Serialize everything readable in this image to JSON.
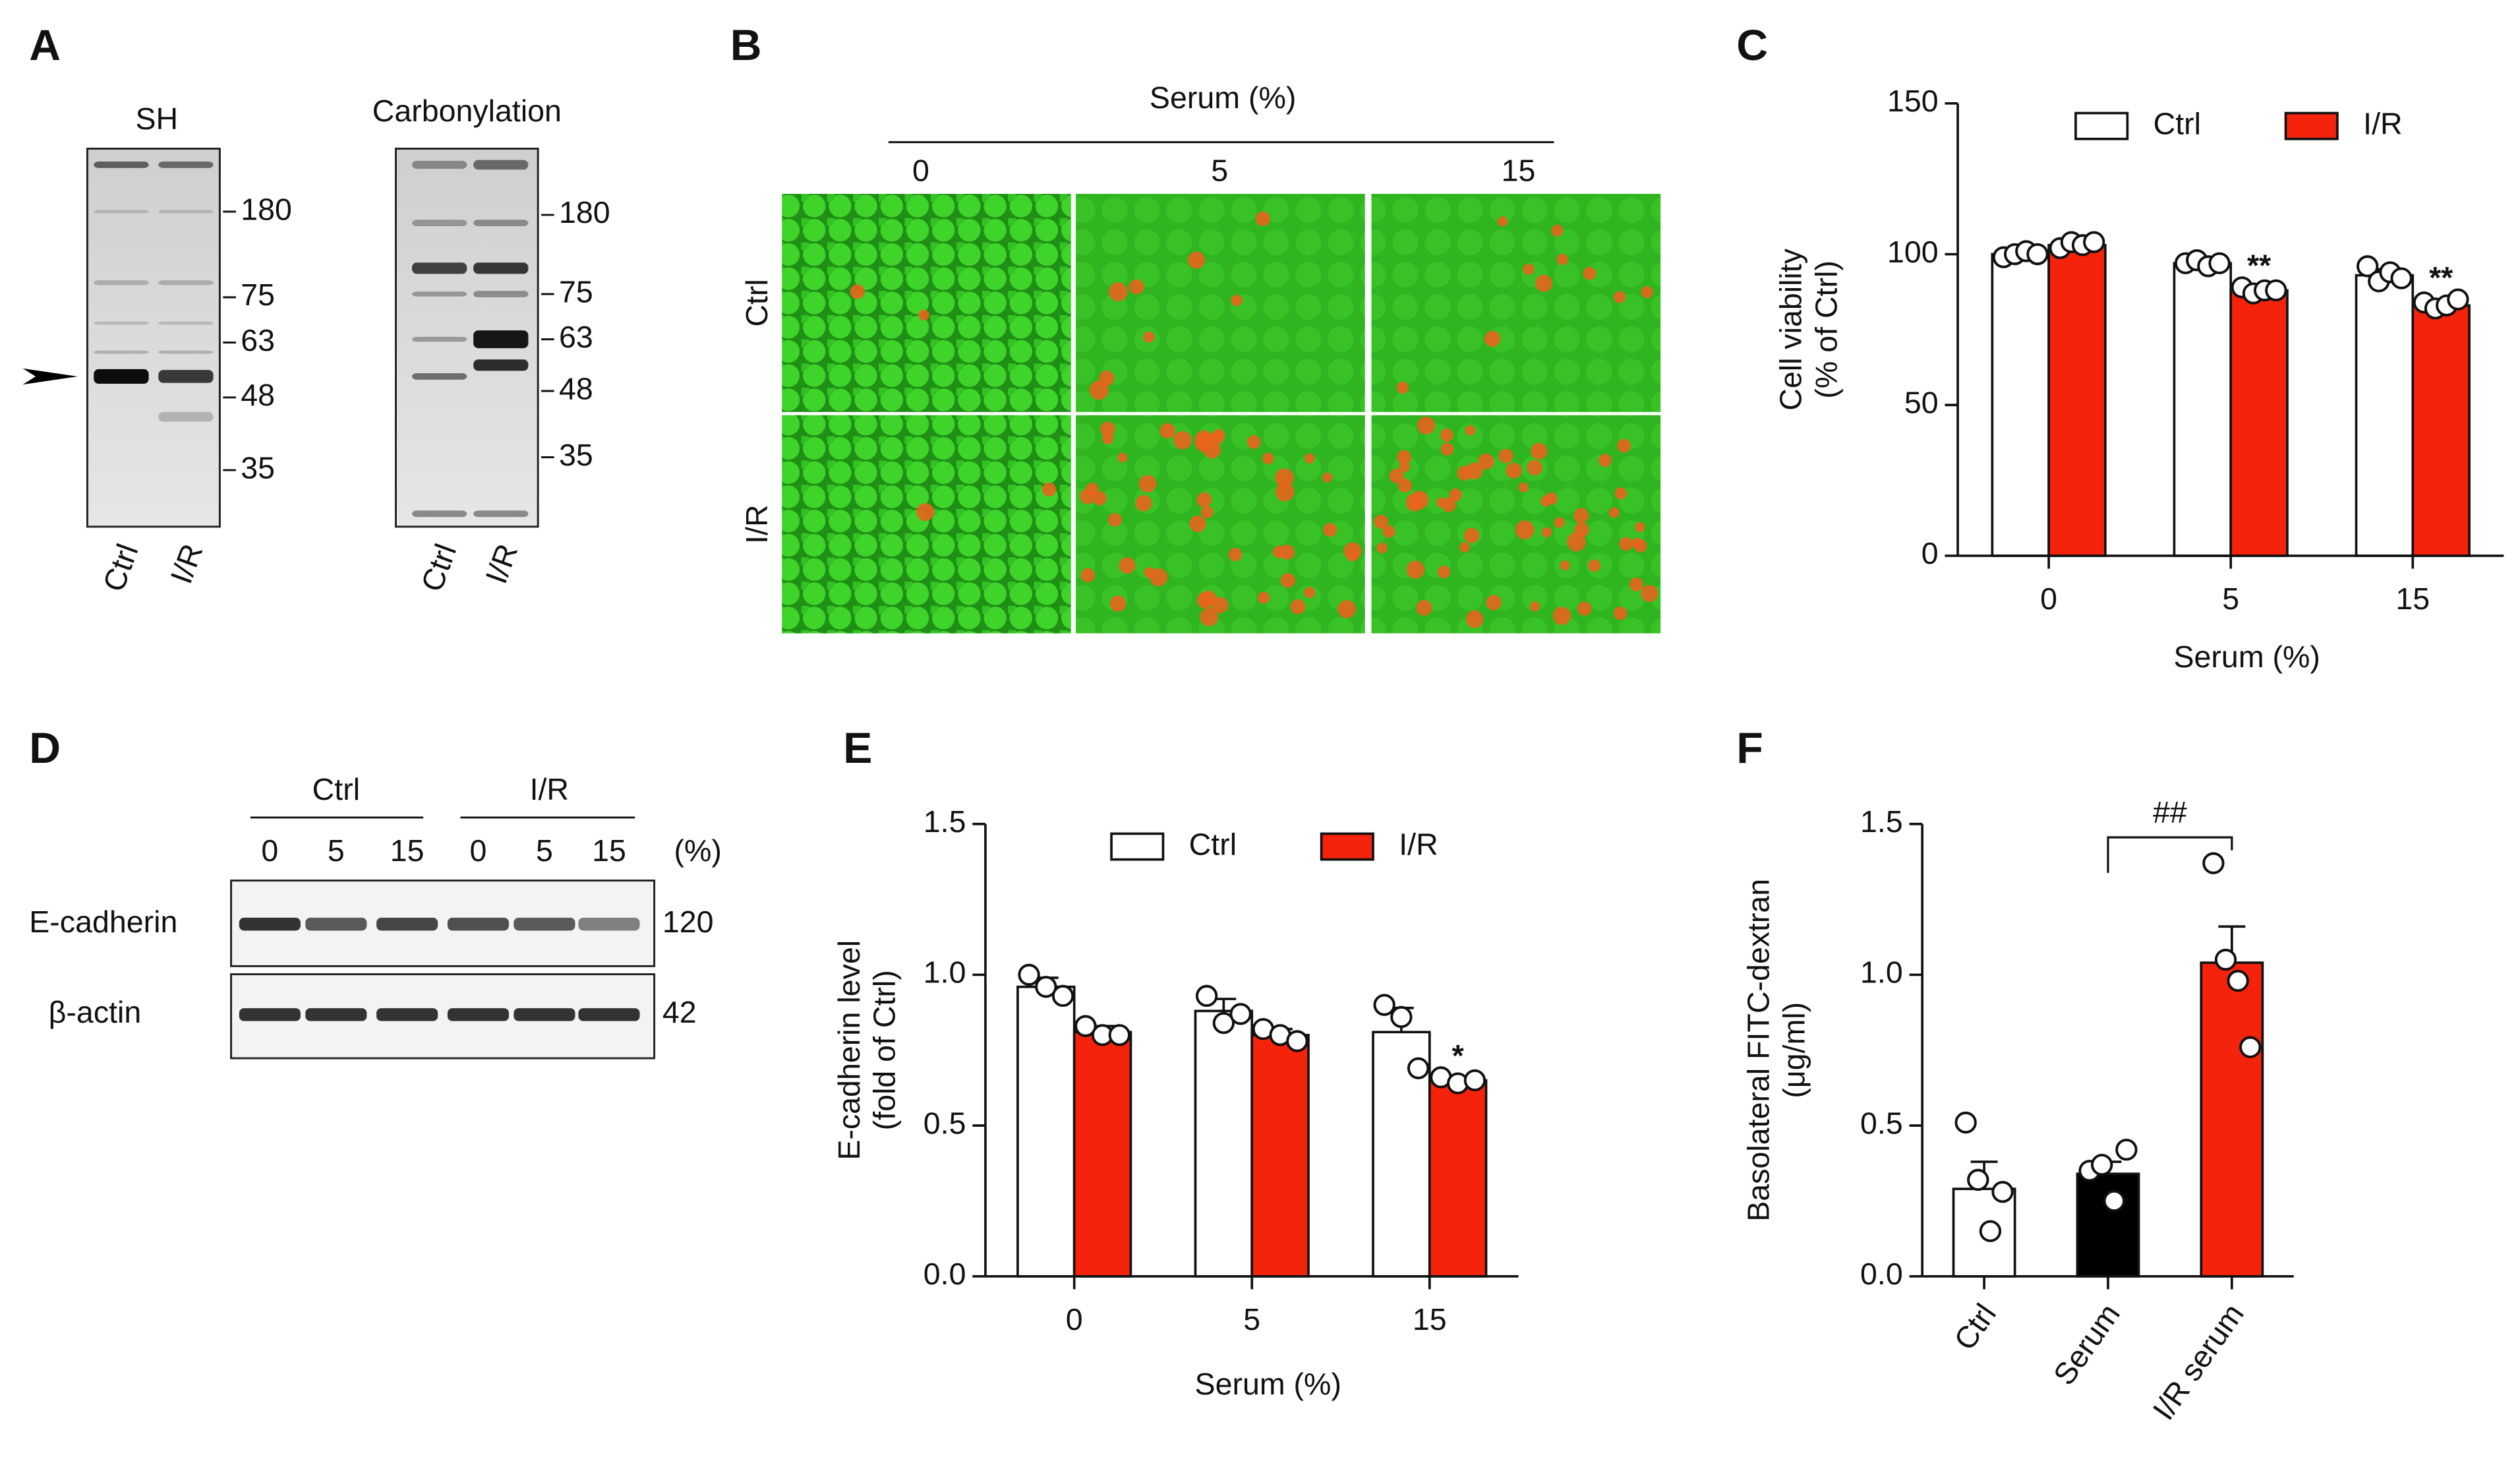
{
  "panels": {
    "A": {
      "label": "A",
      "blots": [
        {
          "title": "SH",
          "markers": [
            "180",
            "75",
            "63",
            "48",
            "35"
          ],
          "lanes": [
            "Ctrl",
            "I/R"
          ]
        },
        {
          "title": "Carbonylation",
          "markers": [
            "180",
            "75",
            "63",
            "48",
            "35"
          ],
          "lanes": [
            "Ctrl",
            "I/R"
          ]
        }
      ]
    },
    "B": {
      "label": "B",
      "header": "Serum (%)",
      "columns": [
        "0",
        "5",
        "15"
      ],
      "rows": [
        "Ctrl",
        "I/R"
      ]
    },
    "D": {
      "label": "D",
      "groups": [
        "Ctrl",
        "I/R"
      ],
      "lanes": [
        "0",
        "5",
        "15",
        "0",
        "5",
        "15"
      ],
      "unit": "(%)",
      "proteins": [
        "E-cadherin",
        "β-actin"
      ],
      "sizes": [
        "120",
        "42"
      ]
    }
  },
  "chart_data": [
    {
      "panel": "C",
      "type": "bar",
      "ylabel": [
        "Cell viability",
        "(% of Ctrl)"
      ],
      "xlabel": "Serum (%)",
      "categories": [
        "0",
        "5",
        "15"
      ],
      "series": [
        {
          "name": "Ctrl",
          "color": "#ffffff",
          "values": [
            100,
            97,
            93
          ],
          "errors": [
            1,
            1,
            2
          ],
          "points": [
            [
              99,
              100,
              101,
              100
            ],
            [
              97,
              98,
              96,
              97
            ],
            [
              96,
              91,
              94,
              92
            ]
          ],
          "sig": [
            null,
            null,
            null
          ]
        },
        {
          "name": "I/R",
          "color": "#f5230c",
          "values": [
            103,
            88,
            83
          ],
          "errors": [
            1,
            1,
            1
          ],
          "points": [
            [
              102,
              104,
              103,
              104
            ],
            [
              89,
              87,
              88,
              88
            ],
            [
              84,
              82,
              83,
              85
            ]
          ],
          "sig": [
            null,
            "**",
            "**"
          ]
        }
      ],
      "ylim": [
        0,
        150
      ],
      "yticks": [
        0,
        50,
        100,
        150
      ]
    },
    {
      "panel": "E",
      "type": "bar",
      "ylabel": [
        "E-cadherin level",
        "(fold of Ctrl)"
      ],
      "xlabel": "Serum (%)",
      "categories": [
        "0",
        "5",
        "15"
      ],
      "series": [
        {
          "name": "Ctrl",
          "color": "#ffffff",
          "values": [
            0.96,
            0.88,
            0.81
          ],
          "errors": [
            0.03,
            0.04,
            0.08
          ],
          "points": [
            [
              1.0,
              0.96,
              0.93
            ],
            [
              0.93,
              0.84,
              0.87
            ],
            [
              0.9,
              0.86,
              0.69
            ]
          ],
          "sig": [
            null,
            null,
            null
          ]
        },
        {
          "name": "I/R",
          "color": "#f5230c",
          "values": [
            0.81,
            0.8,
            0.65
          ],
          "errors": [
            0.02,
            0.02,
            0.01
          ],
          "points": [
            [
              0.83,
              0.8,
              0.8
            ],
            [
              0.82,
              0.8,
              0.78
            ],
            [
              0.66,
              0.64,
              0.65
            ]
          ],
          "sig": [
            null,
            null,
            "*"
          ]
        }
      ],
      "ylim": [
        0,
        1.5
      ],
      "yticks": [
        {
          "value": 0,
          "label": "0.0"
        },
        {
          "value": 0.5,
          "label": "0.5"
        },
        {
          "value": 1,
          "label": "1.0"
        },
        {
          "value": 1.5,
          "label": "1.5"
        }
      ]
    },
    {
      "panel": "F",
      "type": "bar",
      "ylabel": [
        "Basolateral FITC-dextran",
        "(μg/ml)"
      ],
      "categories": [
        "Ctrl",
        "Serum",
        "I/R serum"
      ],
      "values": [
        0.29,
        0.34,
        1.04
      ],
      "errors": [
        0.09,
        0.04,
        0.12
      ],
      "colors": [
        "#ffffff",
        "#000000",
        "#f5230c"
      ],
      "points": [
        [
          0.51,
          0.32,
          0.15,
          0.28
        ],
        [
          0.35,
          0.37,
          0.25,
          0.42
        ],
        [
          1.37,
          1.05,
          0.98,
          0.76
        ]
      ],
      "comparison_label": "##",
      "ylim": [
        0,
        1.5
      ],
      "yticks": [
        {
          "value": 0,
          "label": "0.0"
        },
        {
          "value": 0.5,
          "label": "0.5"
        },
        {
          "value": 1,
          "label": "1.0"
        },
        {
          "value": 1.5,
          "label": "1.5"
        }
      ]
    }
  ]
}
